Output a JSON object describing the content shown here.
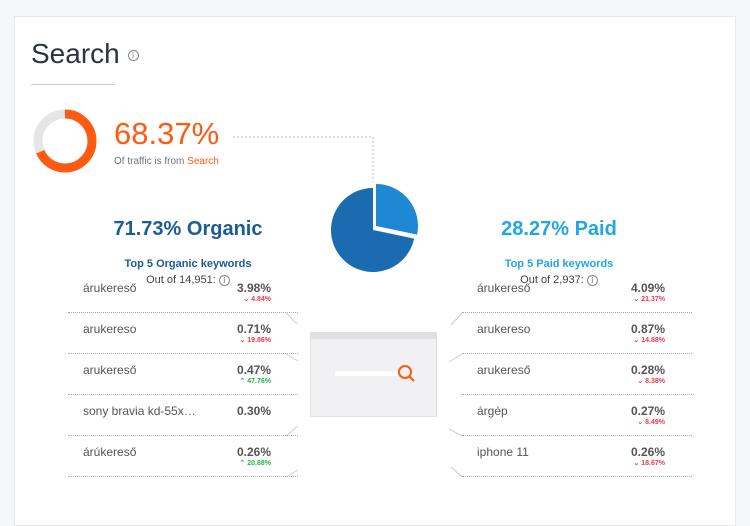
{
  "title": "Search",
  "info": "i",
  "traffic": {
    "percent": "68.37%",
    "fraction": 0.6837,
    "label": "Of traffic is from",
    "source": "Search",
    "color": "#ff5a12"
  },
  "organic": {
    "headline_pct": "71.73%",
    "headline_label": "Organic",
    "fraction": 0.7173,
    "color": "#1a5c96",
    "top_label": "Top 5 Organic keywords",
    "out_of": "Out of 14,951:",
    "rows": [
      {
        "kw": "árukereső",
        "val": "3.98%",
        "chg": "4.84%",
        "dir": "down"
      },
      {
        "kw": "arukereso",
        "val": "0.71%",
        "chg": "19.86%",
        "dir": "down"
      },
      {
        "kw": "arukereső",
        "val": "0.47%",
        "chg": "47.76%",
        "dir": "up"
      },
      {
        "kw": "sony bravia kd-55x…",
        "val": "0.30%",
        "chg": "",
        "dir": ""
      },
      {
        "kw": "árúkereső",
        "val": "0.26%",
        "chg": "20.68%",
        "dir": "up"
      }
    ]
  },
  "paid": {
    "headline_pct": "28.27%",
    "headline_label": "Paid",
    "fraction": 0.2827,
    "color": "#1fa6e8",
    "top_label": "Top 5 Paid keywords",
    "out_of": "Out of 2,937:",
    "rows": [
      {
        "kw": "árukereső",
        "val": "4.09%",
        "chg": "21.37%",
        "dir": "down"
      },
      {
        "kw": "arukereso",
        "val": "0.87%",
        "chg": "14.88%",
        "dir": "down"
      },
      {
        "kw": "arukereső",
        "val": "0.28%",
        "chg": "8.38%",
        "dir": "down"
      },
      {
        "kw": "árgép",
        "val": "0.27%",
        "chg": "8.49%",
        "dir": "down"
      },
      {
        "kw": "iphone 11",
        "val": "0.26%",
        "chg": "18.67%",
        "dir": "down"
      }
    ]
  }
}
